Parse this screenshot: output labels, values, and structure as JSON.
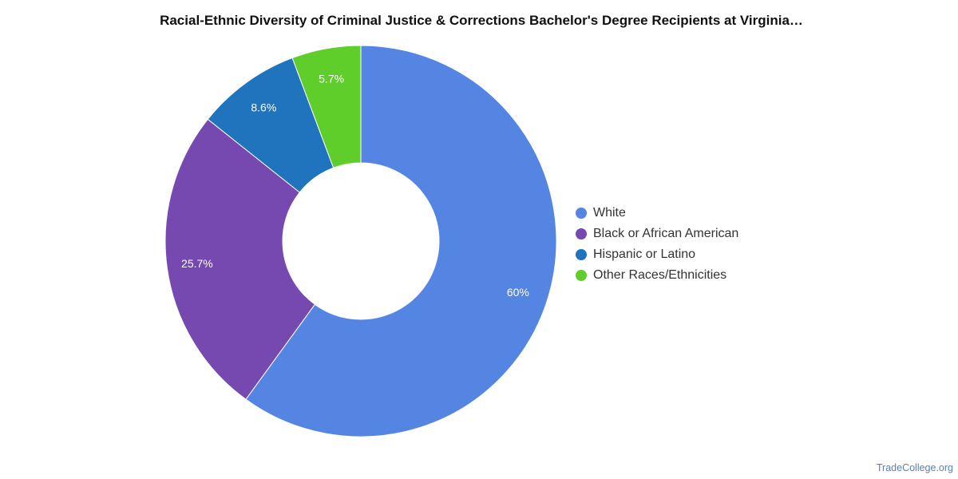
{
  "chart_data": {
    "type": "pie",
    "title": "Racial-Ethnic Diversity of Criminal Justice & Corrections Bachelor's Degree Recipients at Virginia…",
    "donut": true,
    "categories": [
      "White",
      "Black or African American",
      "Hispanic or Latino",
      "Other Races/Ethnicities"
    ],
    "values": [
      60,
      25.7,
      8.6,
      5.7
    ],
    "data_labels": [
      "60%",
      "25.7%",
      "8.6%",
      "5.7%"
    ],
    "colors": [
      "#5485e2",
      "#7549b0",
      "#1f74bd",
      "#5fcd2a"
    ],
    "legend_position": "right"
  },
  "footer": {
    "source": "TradeCollege.org"
  }
}
